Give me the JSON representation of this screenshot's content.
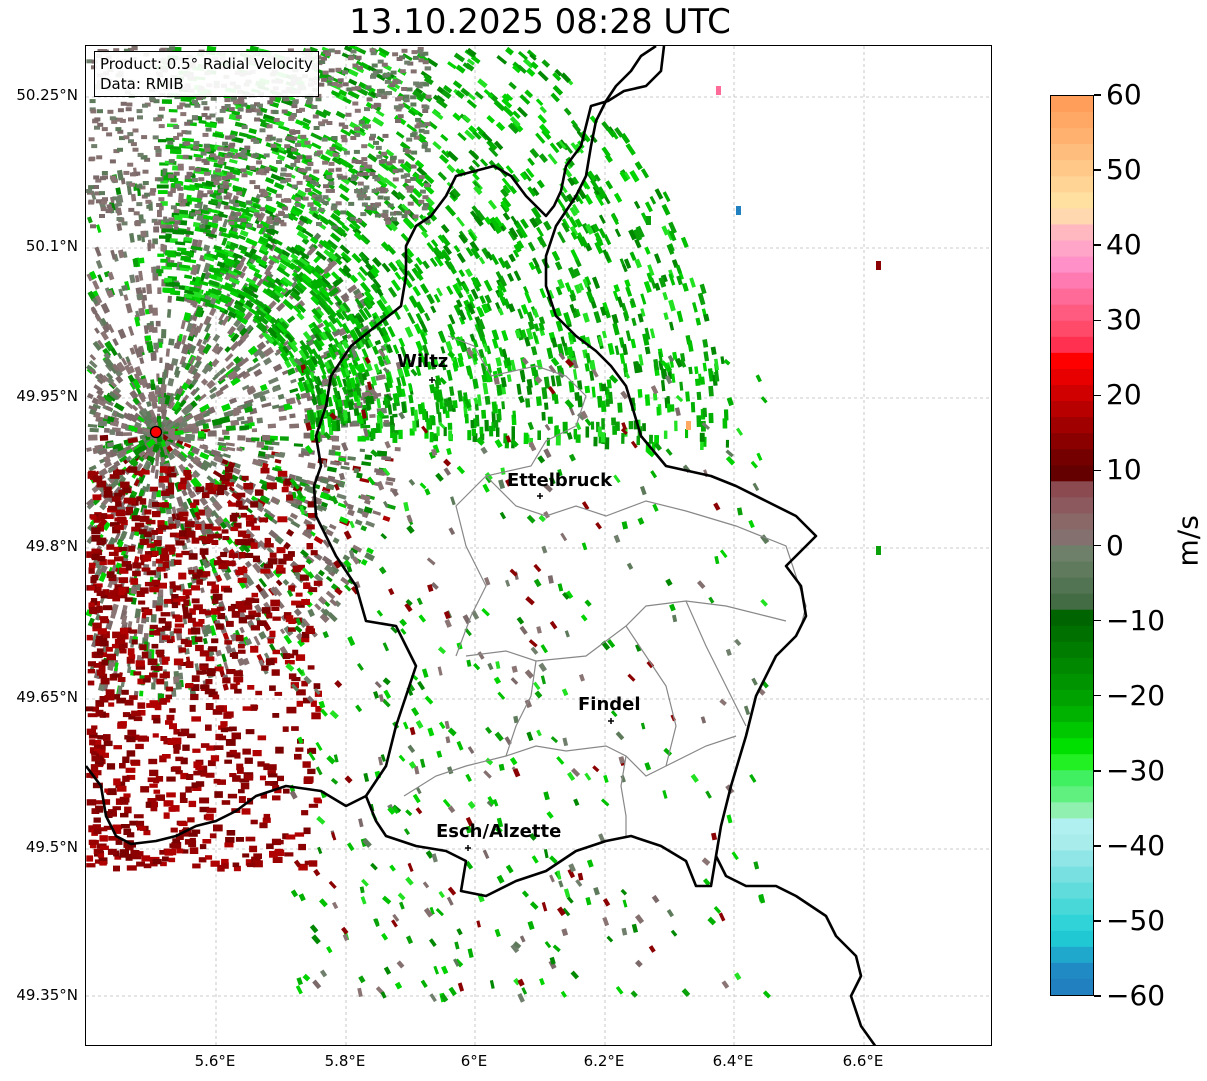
{
  "title": "13.10.2025 08:28 UTC",
  "info": {
    "product": "Product: 0.5° Radial Velocity",
    "source": "Data: RMIB"
  },
  "axes": {
    "lat_ticks": [
      "50.25°N",
      "50.1°N",
      "49.95°N",
      "49.8°N",
      "49.65°N",
      "49.5°N",
      "49.35°N"
    ],
    "lon_ticks": [
      "5.6°E",
      "5.8°E",
      "6°E",
      "6.2°E",
      "6.4°E",
      "6.6°E"
    ]
  },
  "cities": [
    {
      "name": "Wiltz"
    },
    {
      "name": "Ettelbruck"
    },
    {
      "name": "Findel"
    },
    {
      "name": "Esch/Alzette"
    }
  ],
  "colorbar": {
    "unit": "m/s",
    "ticks": [
      "60",
      "50",
      "40",
      "30",
      "20",
      "10",
      "0",
      "−10",
      "−20",
      "−30",
      "−40",
      "−50",
      "−60"
    ],
    "min": -60,
    "max": 60
  },
  "colors": {
    "inbound_strong": "#00e000",
    "inbound": "#0a9a0a",
    "near_zero": "#857070",
    "outbound": "#8b0000",
    "border": "#000000",
    "canton": "#888888",
    "radar_site": "#ff0000"
  }
}
